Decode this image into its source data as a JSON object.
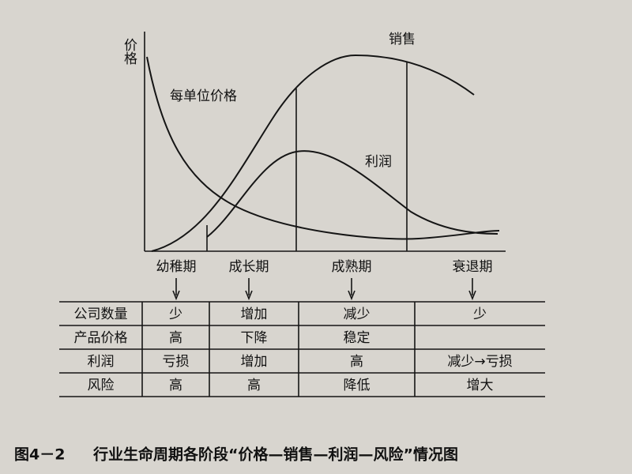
{
  "diagram": {
    "y_axis_label": "价格",
    "price_curve": "每单位价格",
    "sales_curve": "销售",
    "profit_curve": "利润",
    "stages": [
      "幼稚期",
      "成长期",
      "成熟期",
      "衰退期"
    ]
  },
  "table": {
    "rows": [
      [
        "公司数量",
        "少",
        "增加",
        "减少",
        "少"
      ],
      [
        "产品价格",
        "高",
        "下降",
        "稳定",
        null
      ],
      [
        "利润",
        "亏损",
        "增加",
        "高",
        "减少→亏损"
      ],
      [
        "风险",
        "高",
        "高",
        "降低",
        "增大"
      ]
    ]
  },
  "caption": {
    "number": "图4－2",
    "title": "行业生命周期各阶段“价格—销售—利润—风险”情况图"
  }
}
